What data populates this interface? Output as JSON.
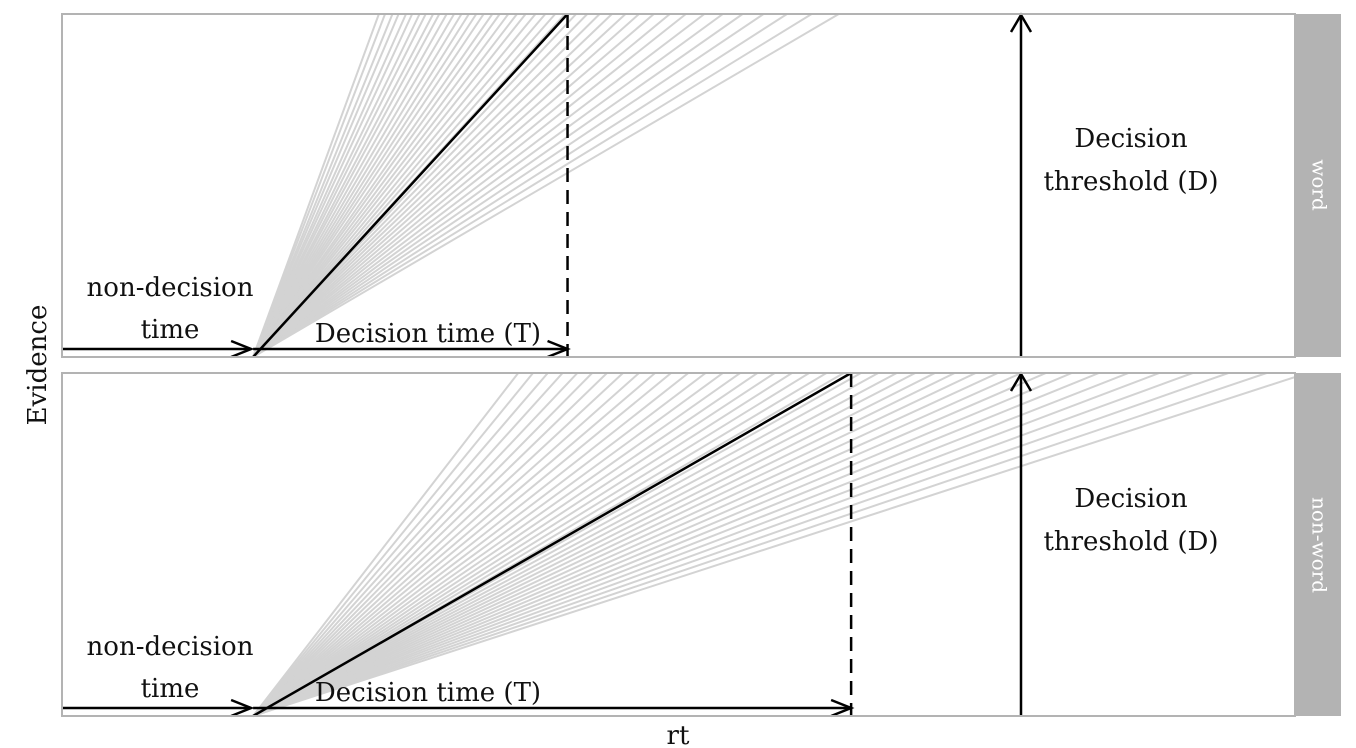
{
  "chart_data": {
    "type": "line",
    "xlabel": "rt",
    "ylabel": "Evidence",
    "panels": [
      {
        "facet_label": "word",
        "nondecision_label": [
          "non-decision",
          "time"
        ],
        "decision_time_label": "Decision time (T)",
        "threshold_label": [
          "Decision",
          "threshold (D)"
        ],
        "nondecision_time": 0.155,
        "mean_finish_time": 0.41,
        "threshold": 1.0,
        "sample_finish_times": [
          0.257,
          0.262,
          0.268,
          0.273,
          0.279,
          0.284,
          0.29,
          0.295,
          0.301,
          0.306,
          0.312,
          0.318,
          0.324,
          0.33,
          0.336,
          0.342,
          0.349,
          0.355,
          0.362,
          0.369,
          0.376,
          0.384,
          0.392,
          0.4,
          0.408,
          0.417,
          0.426,
          0.436,
          0.446,
          0.457,
          0.468,
          0.48,
          0.493,
          0.506,
          0.521,
          0.536,
          0.552,
          0.569,
          0.588,
          0.608,
          0.63
        ]
      },
      {
        "facet_label": "non-word",
        "nondecision_label": [
          "non-decision",
          "time"
        ],
        "decision_time_label": "Decision time (T)",
        "threshold_label": [
          "Decision",
          "threshold (D)"
        ],
        "nondecision_time": 0.155,
        "mean_finish_time": 0.64,
        "threshold": 1.0,
        "sample_finish_times": [
          0.37,
          0.382,
          0.394,
          0.406,
          0.418,
          0.43,
          0.442,
          0.455,
          0.468,
          0.481,
          0.494,
          0.508,
          0.522,
          0.536,
          0.55,
          0.564,
          0.578,
          0.592,
          0.606,
          0.62,
          0.634,
          0.648,
          0.662,
          0.677,
          0.692,
          0.708,
          0.724,
          0.741,
          0.759,
          0.778,
          0.798,
          0.819,
          0.841,
          0.865,
          0.89,
          0.917,
          0.946,
          0.977,
          1.01
        ]
      }
    ],
    "xlim": [
      0,
      1.0
    ],
    "ylim": [
      0,
      1.0
    ],
    "colors": {
      "mean_line": "#000000",
      "sample_lines": "#d3d3d3",
      "strip": "#b3b3b3",
      "panel_border": "#b3b3b3"
    }
  }
}
